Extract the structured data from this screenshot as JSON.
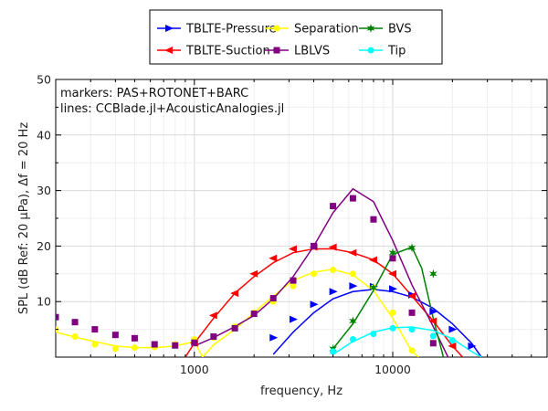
{
  "chart_data": {
    "type": "line",
    "xlabel": "frequency, Hz",
    "ylabel": "SPL (dB Ref: 20 μPa), Δf = 20 Hz",
    "xscale": "log",
    "xlim": [
      200,
      60000
    ],
    "ylim": [
      0,
      50
    ],
    "x_ticks": [
      1000,
      10000
    ],
    "x_tick_labels": [
      "1000",
      "10000"
    ],
    "y_ticks": [
      10,
      20,
      30,
      40,
      50
    ],
    "y_tick_labels": [
      "10",
      "20",
      "30",
      "40",
      "50"
    ],
    "grid": true,
    "legend_position": "top, outside plot area",
    "annotations": [
      "markers: PAS+ROTONET+BARC",
      "lines: CCBlade.jl+AcousticAnalogies.jl"
    ],
    "series": [
      {
        "name": "TBLTE-Pressure",
        "color": "#0000ff",
        "marker": "triangle-right",
        "line_x": [
          2500,
          3150,
          4000,
          5000,
          6300,
          8000,
          10000,
          12500,
          16000,
          20000,
          25000,
          28000
        ],
        "line_y": [
          0.5,
          4.5,
          8.0,
          10.5,
          11.8,
          12.2,
          11.8,
          10.8,
          8.8,
          6.0,
          2.5,
          0
        ],
        "points_x": [
          2500,
          3150,
          4000,
          5000,
          6300,
          8000,
          10000,
          12500,
          16000,
          20000,
          25000
        ],
        "points_y": [
          3.5,
          6.8,
          9.5,
          11.8,
          12.8,
          12.7,
          12.3,
          11.2,
          8.2,
          5.0,
          2.0
        ]
      },
      {
        "name": "TBLTE-Suction",
        "color": "#ff0000",
        "marker": "triangle-left",
        "line_x": [
          900,
          1000,
          1250,
          1600,
          2000,
          2500,
          3150,
          4000,
          5000,
          6300,
          8000,
          10000,
          12500,
          16000,
          20000,
          22500
        ],
        "line_y": [
          0,
          2.5,
          7.0,
          11.5,
          14.5,
          17.0,
          18.8,
          19.5,
          19.5,
          18.8,
          17.5,
          15.0,
          11.0,
          6.5,
          2.0,
          0
        ],
        "points_x": [
          1000,
          1250,
          1600,
          2000,
          2500,
          3150,
          4000,
          5000,
          6300,
          8000,
          10000,
          12500,
          16000,
          20000
        ],
        "points_y": [
          2.5,
          7.5,
          11.5,
          15.0,
          17.8,
          19.5,
          19.8,
          19.8,
          18.8,
          17.5,
          15.0,
          11.0,
          6.5,
          2.0
        ]
      },
      {
        "name": "Separation",
        "color": "#ffff00",
        "marker": "circle",
        "line_x": [
          200,
          250,
          315,
          400,
          500,
          630,
          800,
          1000,
          1100,
          1250,
          1600,
          2000,
          2500,
          3150,
          4000,
          5000,
          6300,
          8000,
          10000,
          12500,
          13500
        ],
        "line_y": [
          4.5,
          3.6,
          2.8,
          2.0,
          1.7,
          1.7,
          2.0,
          2.8,
          0,
          2.2,
          5.0,
          8.0,
          11.0,
          13.8,
          15.3,
          15.8,
          14.8,
          12.0,
          7.0,
          1.0,
          0
        ],
        "points_x": [
          200,
          250,
          315,
          400,
          500,
          630,
          800,
          1000,
          1250,
          1600,
          2000,
          2500,
          3150,
          4000,
          5000,
          6300,
          8000,
          10000,
          12500
        ],
        "points_y": [
          5.0,
          3.7,
          2.3,
          1.5,
          1.7,
          1.8,
          2.3,
          3.2,
          3.5,
          5.5,
          8.0,
          10.0,
          12.8,
          15.0,
          15.7,
          15.0,
          12.5,
          8.0,
          1.2
        ]
      },
      {
        "name": "LBLVS",
        "color": "#800080",
        "marker": "square",
        "line_x": [
          1000,
          1250,
          1600,
          2000,
          2500,
          3150,
          4000,
          5000,
          6300,
          8000,
          10000,
          12500,
          16000,
          19000
        ],
        "line_y": [
          2.0,
          3.5,
          5.5,
          7.5,
          10.5,
          14.5,
          20.0,
          26.0,
          30.3,
          28.0,
          21.0,
          13.0,
          5.5,
          0
        ],
        "points_x": [
          200,
          250,
          315,
          400,
          500,
          630,
          800,
          1000,
          1250,
          1600,
          2000,
          2500,
          3150,
          4000,
          5000,
          6300,
          8000,
          10000,
          12500,
          16000
        ],
        "points_y": [
          7.2,
          6.3,
          5.0,
          4.0,
          3.4,
          2.3,
          2.1,
          2.6,
          3.7,
          5.2,
          7.8,
          10.6,
          13.8,
          20.0,
          27.2,
          28.6,
          24.8,
          17.8,
          8.0,
          2.5
        ]
      },
      {
        "name": "BVS",
        "color": "#008000",
        "marker": "star",
        "line_x": [
          5000,
          6300,
          8000,
          10000,
          12500,
          14000,
          16000,
          18000
        ],
        "line_y": [
          1.5,
          6.0,
          12.0,
          18.5,
          19.8,
          16.0,
          7.0,
          0
        ],
        "points_x": [
          5000,
          6300,
          8000,
          10000,
          12500,
          16000
        ],
        "points_y": [
          1.5,
          6.5,
          12.5,
          18.8,
          19.7,
          15.0
        ]
      },
      {
        "name": "Tip",
        "color": "#00ffff",
        "marker": "circle",
        "line_x": [
          5000,
          6300,
          8000,
          10000,
          12500,
          16000,
          20000,
          25000,
          28000
        ],
        "line_y": [
          0.5,
          2.8,
          4.5,
          5.3,
          5.4,
          4.8,
          3.3,
          1.0,
          0
        ],
        "points_x": [
          5000,
          6300,
          8000,
          10000,
          12500,
          16000,
          20000
        ],
        "points_y": [
          1.0,
          3.2,
          4.2,
          5.2,
          5.0,
          3.8,
          3.0
        ]
      }
    ]
  }
}
